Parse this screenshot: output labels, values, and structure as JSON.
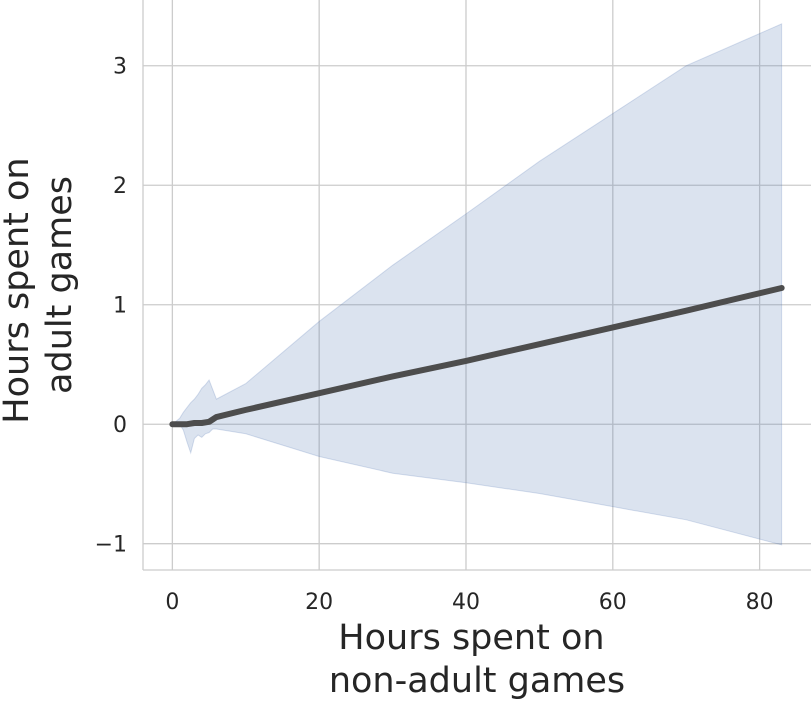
{
  "chart_data": {
    "type": "line",
    "title": "",
    "xlabel_lines": [
      "Hours spent on",
      "non-adult games"
    ],
    "ylabel_lines": [
      "Hours spent on",
      "adult games"
    ],
    "xlim": [
      -4,
      87
    ],
    "ylim": [
      -1.22,
      3.55
    ],
    "xticks": [
      0,
      20,
      40,
      60,
      80
    ],
    "xtick_labels": [
      "0",
      "20",
      "40",
      "60",
      "80"
    ],
    "yticks": [
      -1,
      0,
      1,
      2,
      3
    ],
    "ytick_labels": [
      "−1",
      "0",
      "1",
      "2",
      "3"
    ],
    "grid": true,
    "series": [
      {
        "x": [
          0,
          1,
          2,
          3,
          4,
          5,
          5.5,
          6,
          10,
          20,
          30,
          40,
          50,
          60,
          70,
          83
        ],
        "y": [
          0,
          0,
          0,
          0.01,
          0.01,
          0.02,
          0.04,
          0.06,
          0.12,
          0.26,
          0.4,
          0.53,
          0.67,
          0.81,
          0.95,
          1.14
        ],
        "color": "#4d4d4d"
      }
    ],
    "confidence_band": {
      "x": [
        0,
        1,
        1.5,
        2,
        2.5,
        3,
        3.5,
        4,
        4.5,
        5,
        5.5,
        6,
        10,
        20,
        30,
        40,
        50,
        60,
        70,
        83
      ],
      "lower": [
        0,
        0.0,
        -0.05,
        -0.15,
        -0.24,
        -0.12,
        -0.09,
        -0.11,
        -0.08,
        -0.07,
        -0.04,
        -0.04,
        -0.08,
        -0.27,
        -0.41,
        -0.49,
        -0.58,
        -0.69,
        -0.8,
        -1.01
      ],
      "upper": [
        0,
        0.05,
        0.1,
        0.14,
        0.18,
        0.21,
        0.25,
        0.3,
        0.33,
        0.37,
        0.29,
        0.21,
        0.34,
        0.86,
        1.33,
        1.76,
        2.2,
        2.6,
        3.0,
        3.35
      ],
      "color": "#4c72b0",
      "opacity": 0.2
    }
  }
}
